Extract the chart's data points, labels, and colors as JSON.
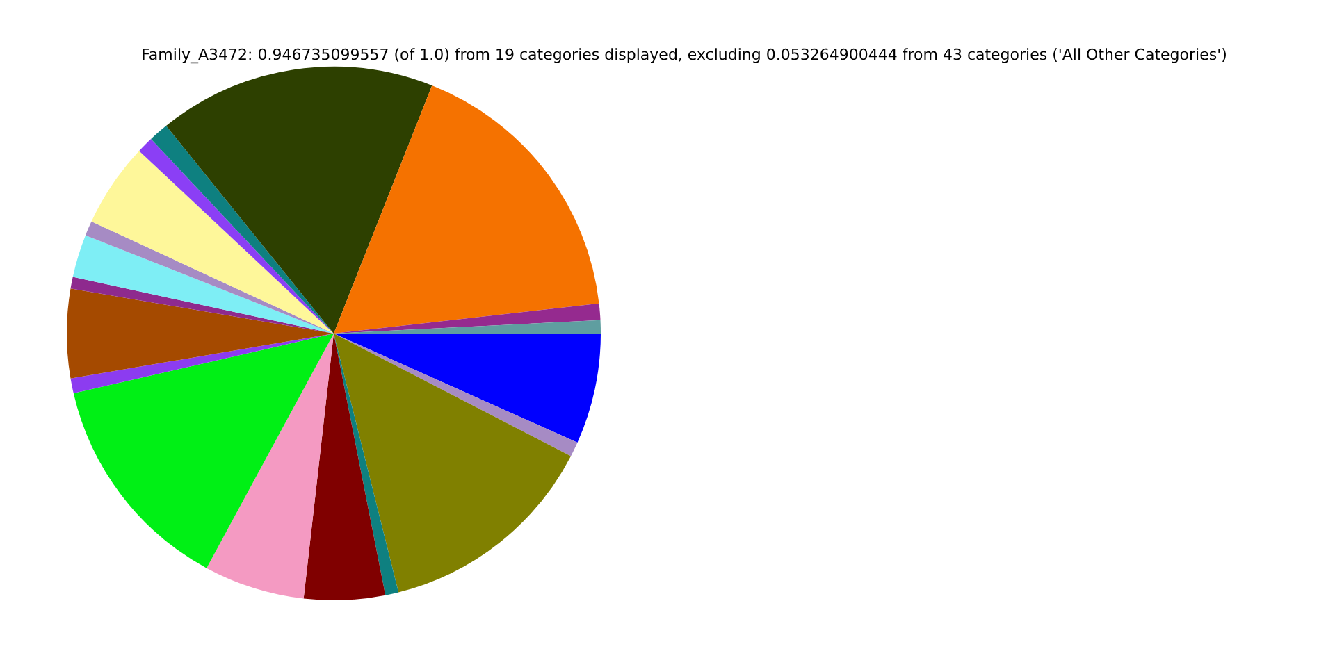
{
  "chart_data": {
    "type": "pie",
    "title": "Family_A3472: 0.946735099557 (of 1.0) from 19 categories displayed, excluding 0.053264900444 from 43 categories ('All Other Categories')",
    "categories": [
      null,
      null,
      null,
      null,
      null,
      null,
      null,
      null,
      null,
      null,
      null,
      null,
      null,
      null,
      null,
      null,
      null,
      null,
      null
    ],
    "values": [
      6.7,
      0.9,
      13.5,
      0.8,
      4.9,
      6.1,
      13.5,
      0.9,
      5.4,
      0.7,
      2.6,
      0.9,
      5.1,
      1.0,
      1.2,
      16.8,
      17.2,
      1.0,
      0.8
    ],
    "colors": [
      "#0000ff",
      "#a68bc4",
      "#808000",
      "#0e8080",
      "#800000",
      "#f49ac2",
      "#00f015",
      "#8c3cf0",
      "#a54a00",
      "#8e2a8e",
      "#7eeef5",
      "#a68bc4",
      "#fef79a",
      "#8b3ff5",
      "#0e8080",
      "#2d4000",
      "#f57200",
      "#952a8f",
      "#5f9ea0"
    ],
    "legend": false
  }
}
